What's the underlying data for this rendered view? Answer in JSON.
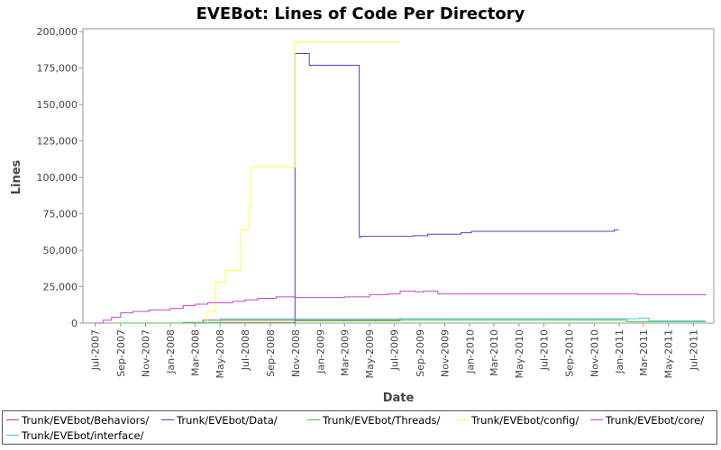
{
  "chart_data": {
    "type": "line",
    "title": "EVEBot: Lines of Code Per Directory",
    "xlabel": "Date",
    "ylabel": "Lines",
    "xlim": [
      "2007-06-01",
      "2011-08-20"
    ],
    "ylim": [
      0,
      202000
    ],
    "yticks": [
      0,
      25000,
      50000,
      75000,
      100000,
      125000,
      150000,
      175000,
      200000
    ],
    "ytick_labels": [
      "0",
      "25,000",
      "50,000",
      "75,000",
      "100,000",
      "125,000",
      "150,000",
      "175,000",
      "200,000"
    ],
    "xticks": [
      "2007-07-01",
      "2007-09-01",
      "2007-11-01",
      "2008-01-01",
      "2008-03-01",
      "2008-05-01",
      "2008-07-01",
      "2008-09-01",
      "2008-11-01",
      "2009-01-01",
      "2009-03-01",
      "2009-05-01",
      "2009-07-01",
      "2009-09-01",
      "2009-11-01",
      "2010-01-01",
      "2010-03-01",
      "2010-05-01",
      "2010-07-01",
      "2010-09-01",
      "2010-11-01",
      "2011-01-01",
      "2011-03-01",
      "2011-05-01",
      "2011-07-01"
    ],
    "xtick_labels": [
      "Jul-2007",
      "Sep-2007",
      "Nov-2007",
      "Jan-2008",
      "Mar-2008",
      "May-2008",
      "Jul-2008",
      "Sep-2008",
      "Nov-2008",
      "Jan-2009",
      "Mar-2009",
      "May-2009",
      "Jul-2009",
      "Sep-2009",
      "Nov-2009",
      "Jan-2010",
      "Mar-2010",
      "May-2010",
      "Jul-2010",
      "Sep-2010",
      "Nov-2010",
      "Jan-2011",
      "Mar-2011",
      "May-2011",
      "Jul-2011"
    ],
    "grid": false,
    "legend_position": "bottom",
    "step": true,
    "series": [
      {
        "name": "Trunk/EVEbot/Behaviors/",
        "color": "#cc4444",
        "points": [
          [
            "2008-03-15",
            0
          ],
          [
            "2008-03-20",
            2000
          ],
          [
            "2009-07-15",
            3000
          ],
          [
            "2011-01-15",
            3000
          ]
        ]
      },
      {
        "name": "Trunk/EVEbot/Data/",
        "color": "#4444cc",
        "points": [
          [
            "2008-10-28",
            0
          ],
          [
            "2008-10-31",
            185000
          ],
          [
            "2008-12-05",
            177000
          ],
          [
            "2009-04-06",
            59000
          ],
          [
            "2009-04-10",
            59500
          ],
          [
            "2009-08-15",
            60000
          ],
          [
            "2009-09-20",
            61000
          ],
          [
            "2009-12-10",
            62000
          ],
          [
            "2010-01-05",
            63000
          ],
          [
            "2010-12-20",
            64000
          ],
          [
            "2010-12-31",
            64000
          ]
        ]
      },
      {
        "name": "Trunk/EVEbot/Threads/",
        "color": "#44cc44",
        "points": [
          [
            "2007-09-01",
            0
          ],
          [
            "2008-02-01",
            500
          ],
          [
            "2008-10-31",
            1500
          ],
          [
            "2009-07-15",
            2000
          ],
          [
            "2011-01-15",
            2000
          ],
          [
            "2011-01-20",
            1000
          ],
          [
            "2011-07-31",
            1000
          ]
        ]
      },
      {
        "name": "Trunk/EVEbot/config/",
        "color": "#ffff44",
        "points": [
          [
            "2008-03-15",
            0
          ],
          [
            "2008-04-01",
            8000
          ],
          [
            "2008-04-20",
            28000
          ],
          [
            "2008-05-15",
            36000
          ],
          [
            "2008-06-20",
            64000
          ],
          [
            "2008-07-10",
            80000
          ],
          [
            "2008-07-15",
            107000
          ],
          [
            "2008-10-31",
            193000
          ],
          [
            "2009-07-15",
            193000
          ]
        ]
      },
      {
        "name": "Trunk/EVEbot/core/",
        "color": "#cc44cc",
        "points": [
          [
            "2007-07-01",
            0
          ],
          [
            "2007-07-20",
            2000
          ],
          [
            "2007-08-10",
            4000
          ],
          [
            "2007-09-01",
            7000
          ],
          [
            "2007-10-01",
            8000
          ],
          [
            "2007-11-10",
            9000
          ],
          [
            "2008-01-01",
            10000
          ],
          [
            "2008-02-01",
            12000
          ],
          [
            "2008-03-01",
            13000
          ],
          [
            "2008-04-01",
            14000
          ],
          [
            "2008-06-01",
            15000
          ],
          [
            "2008-07-01",
            16000
          ],
          [
            "2008-08-01",
            17000
          ],
          [
            "2008-09-15",
            18000
          ],
          [
            "2008-11-01",
            17500
          ],
          [
            "2009-03-01",
            18000
          ],
          [
            "2009-05-01",
            19500
          ],
          [
            "2009-06-15",
            20000
          ],
          [
            "2009-07-15",
            22000
          ],
          [
            "2009-08-20",
            21500
          ],
          [
            "2009-09-10",
            22000
          ],
          [
            "2009-10-15",
            20000
          ],
          [
            "2011-02-15",
            19500
          ],
          [
            "2011-07-31",
            19000
          ]
        ]
      },
      {
        "name": "Trunk/EVEbot/interface/",
        "color": "#44cccc",
        "points": [
          [
            "2008-03-15",
            0
          ],
          [
            "2008-05-01",
            3000
          ],
          [
            "2010-12-15",
            3000
          ],
          [
            "2011-02-20",
            3500
          ],
          [
            "2011-03-15",
            1500
          ],
          [
            "2011-07-31",
            1500
          ]
        ]
      }
    ]
  }
}
